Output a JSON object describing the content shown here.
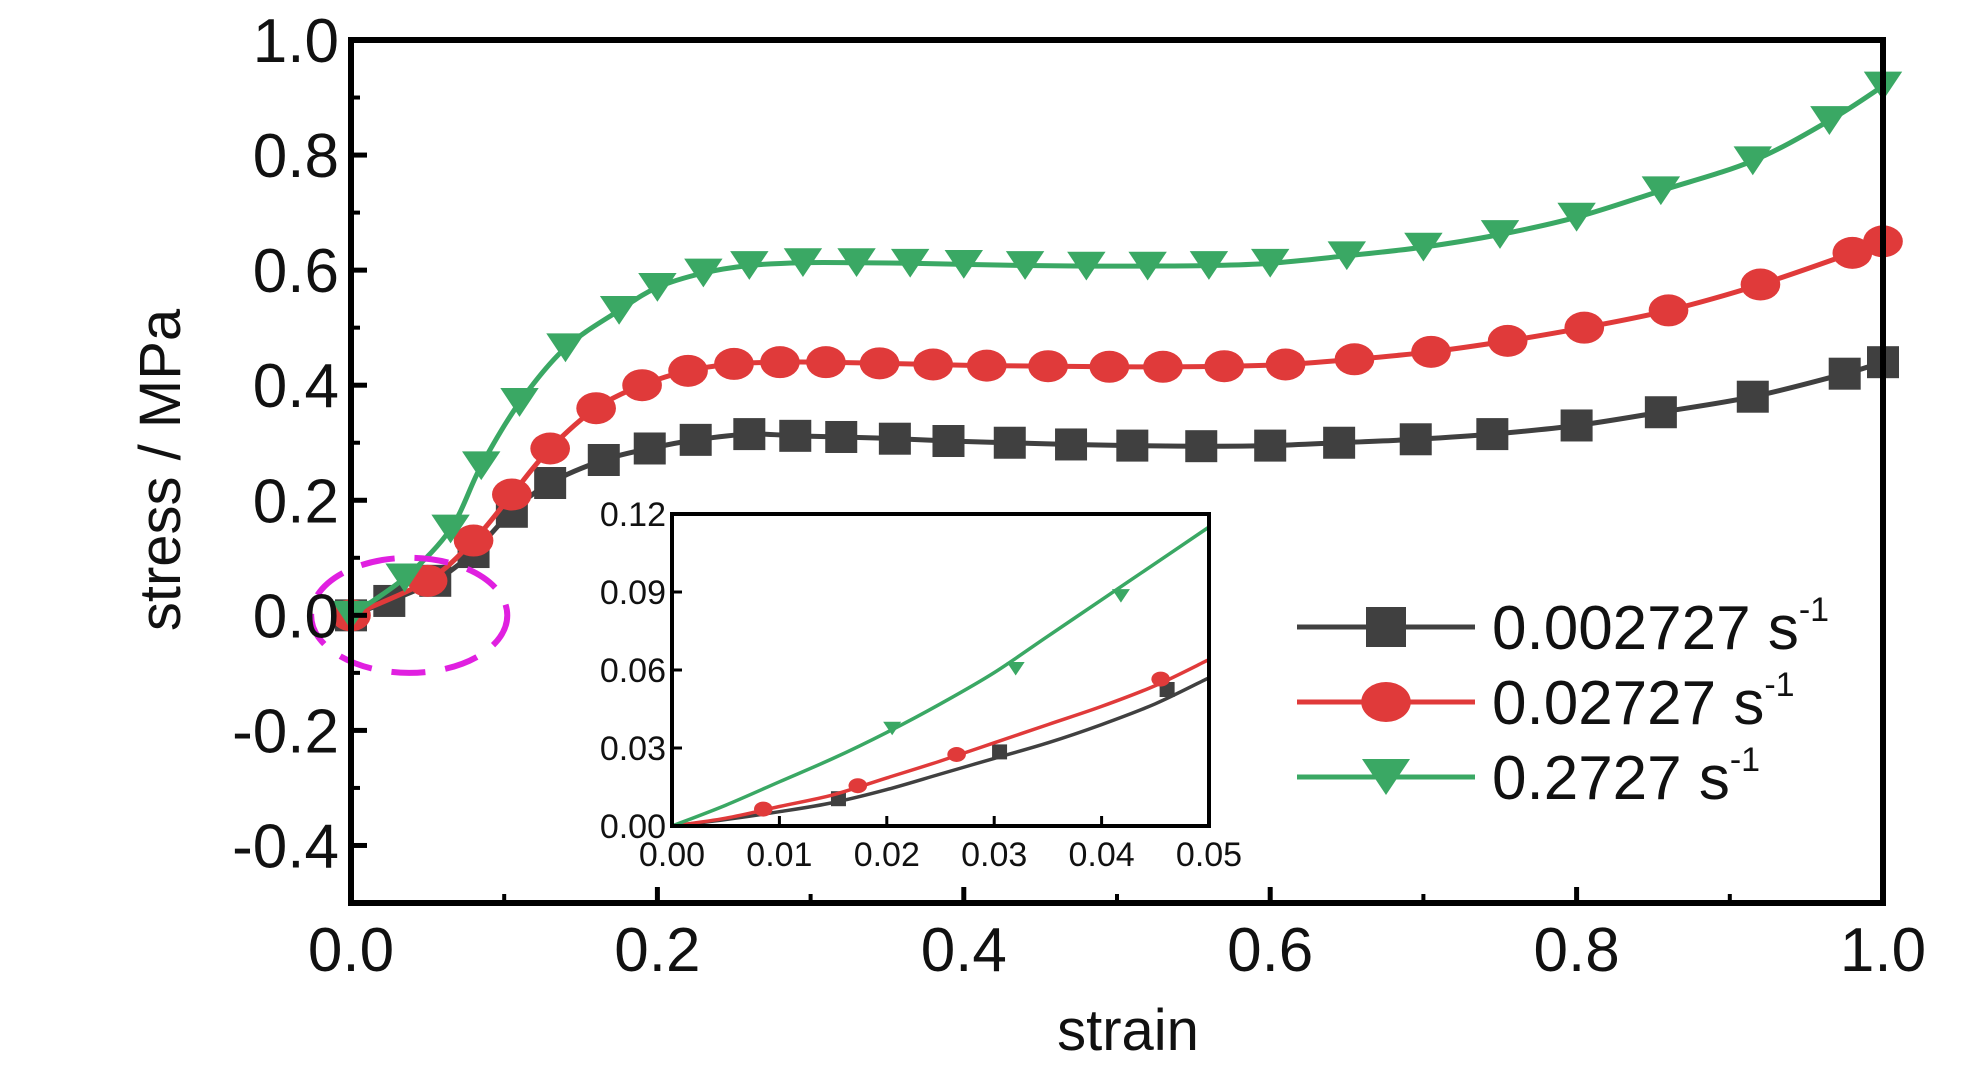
{
  "chart_data": [
    {
      "type": "line",
      "xlabel": "strain",
      "ylabel": "stress / MPa",
      "xlim": [
        0.0,
        1.0
      ],
      "ylim": [
        -0.5,
        1.0
      ],
      "x_ticks": [
        "0.0",
        "0.2",
        "0.4",
        "0.6",
        "0.8",
        "1.0"
      ],
      "y_ticks": [
        "-0.4",
        "-0.2",
        "0.0",
        "0.2",
        "0.4",
        "0.6",
        "0.8",
        "1.0"
      ],
      "legend_position": "right",
      "annotation": "dashed magenta ellipse around initial region near origin (0–0.08 strain)",
      "series": [
        {
          "name": "0.002727 s",
          "superscript": "-1",
          "color": "#404040",
          "marker": "square",
          "points": [
            [
              0.0,
              0.0
            ],
            [
              0.025,
              0.025
            ],
            [
              0.055,
              0.06
            ],
            [
              0.08,
              0.11
            ],
            [
              0.105,
              0.18
            ],
            [
              0.13,
              0.23
            ],
            [
              0.165,
              0.27
            ],
            [
              0.195,
              0.29
            ],
            [
              0.225,
              0.305
            ],
            [
              0.26,
              0.315
            ],
            [
              0.29,
              0.312
            ],
            [
              0.32,
              0.31
            ],
            [
              0.355,
              0.307
            ],
            [
              0.39,
              0.303
            ],
            [
              0.43,
              0.3
            ],
            [
              0.47,
              0.297
            ],
            [
              0.51,
              0.295
            ],
            [
              0.555,
              0.294
            ],
            [
              0.6,
              0.295
            ],
            [
              0.645,
              0.3
            ],
            [
              0.695,
              0.306
            ],
            [
              0.745,
              0.315
            ],
            [
              0.8,
              0.33
            ],
            [
              0.855,
              0.353
            ],
            [
              0.915,
              0.38
            ],
            [
              0.975,
              0.42
            ],
            [
              1.0,
              0.44
            ]
          ]
        },
        {
          "name": "0.02727 s",
          "superscript": "-1",
          "color": "#e03a3a",
          "marker": "circle",
          "points": [
            [
              0.0,
              0.0
            ],
            [
              0.05,
              0.06
            ],
            [
              0.08,
              0.13
            ],
            [
              0.105,
              0.21
            ],
            [
              0.13,
              0.29
            ],
            [
              0.16,
              0.36
            ],
            [
              0.19,
              0.4
            ],
            [
              0.22,
              0.425
            ],
            [
              0.25,
              0.437
            ],
            [
              0.28,
              0.44
            ],
            [
              0.31,
              0.44
            ],
            [
              0.345,
              0.438
            ],
            [
              0.38,
              0.436
            ],
            [
              0.415,
              0.434
            ],
            [
              0.455,
              0.433
            ],
            [
              0.495,
              0.432
            ],
            [
              0.53,
              0.432
            ],
            [
              0.57,
              0.433
            ],
            [
              0.61,
              0.436
            ],
            [
              0.655,
              0.445
            ],
            [
              0.705,
              0.458
            ],
            [
              0.755,
              0.477
            ],
            [
              0.805,
              0.5
            ],
            [
              0.86,
              0.53
            ],
            [
              0.92,
              0.575
            ],
            [
              0.98,
              0.63
            ],
            [
              1.0,
              0.65
            ]
          ]
        },
        {
          "name": "0.2727 s",
          "superscript": "-1",
          "color": "#3aa864",
          "marker": "triangle-down",
          "points": [
            [
              0.0,
              0.0
            ],
            [
              0.035,
              0.065
            ],
            [
              0.065,
              0.15
            ],
            [
              0.085,
              0.26
            ],
            [
              0.11,
              0.37
            ],
            [
              0.14,
              0.465
            ],
            [
              0.175,
              0.53
            ],
            [
              0.2,
              0.57
            ],
            [
              0.23,
              0.595
            ],
            [
              0.26,
              0.608
            ],
            [
              0.295,
              0.613
            ],
            [
              0.33,
              0.613
            ],
            [
              0.365,
              0.612
            ],
            [
              0.4,
              0.61
            ],
            [
              0.44,
              0.608
            ],
            [
              0.48,
              0.607
            ],
            [
              0.52,
              0.607
            ],
            [
              0.56,
              0.608
            ],
            [
              0.6,
              0.612
            ],
            [
              0.65,
              0.625
            ],
            [
              0.7,
              0.64
            ],
            [
              0.75,
              0.662
            ],
            [
              0.8,
              0.692
            ],
            [
              0.855,
              0.738
            ],
            [
              0.915,
              0.79
            ],
            [
              0.965,
              0.86
            ],
            [
              1.0,
              0.92
            ]
          ]
        }
      ]
    },
    {
      "type": "line",
      "role": "inset",
      "xlim": [
        0.0,
        0.05
      ],
      "ylim": [
        0.0,
        0.12
      ],
      "x_ticks": [
        "0.00",
        "0.01",
        "0.02",
        "0.03",
        "0.04",
        "0.05"
      ],
      "y_ticks": [
        "0.00",
        "0.03",
        "0.06",
        "0.09",
        "0.12"
      ],
      "series": [
        {
          "color": "#404040",
          "marker": "square",
          "points": [
            [
              0.0,
              0.0
            ],
            [
              0.005,
              0.0025
            ],
            [
              0.01,
              0.0055
            ],
            [
              0.015,
              0.009
            ],
            [
              0.02,
              0.014
            ],
            [
              0.025,
              0.02
            ],
            [
              0.03,
              0.026
            ],
            [
              0.035,
              0.032
            ],
            [
              0.04,
              0.039
            ],
            [
              0.045,
              0.047
            ],
            [
              0.05,
              0.057
            ]
          ],
          "marker_points": [
            [
              0.0155,
              0.0105
            ],
            [
              0.0305,
              0.0285
            ],
            [
              0.0461,
              0.0525
            ]
          ]
        },
        {
          "color": "#e03a3a",
          "marker": "circle",
          "points": [
            [
              0.0,
              0.0
            ],
            [
              0.005,
              0.003
            ],
            [
              0.01,
              0.0075
            ],
            [
              0.015,
              0.012
            ],
            [
              0.02,
              0.0185
            ],
            [
              0.025,
              0.025
            ],
            [
              0.03,
              0.032
            ],
            [
              0.035,
              0.039
            ],
            [
              0.04,
              0.046
            ],
            [
              0.045,
              0.054
            ],
            [
              0.05,
              0.064
            ]
          ],
          "marker_points": [
            [
              0.0085,
              0.0065
            ],
            [
              0.0173,
              0.0155
            ],
            [
              0.0265,
              0.0275
            ],
            [
              0.0455,
              0.0565
            ]
          ]
        },
        {
          "color": "#3aa864",
          "marker": "triangle-down",
          "points": [
            [
              0.0,
              0.0
            ],
            [
              0.005,
              0.008
            ],
            [
              0.01,
              0.017
            ],
            [
              0.015,
              0.026
            ],
            [
              0.02,
              0.036
            ],
            [
              0.025,
              0.047
            ],
            [
              0.03,
              0.059
            ],
            [
              0.035,
              0.073
            ],
            [
              0.04,
              0.087
            ],
            [
              0.045,
              0.101
            ],
            [
              0.05,
              0.115
            ]
          ],
          "marker_points": [
            [
              0.0205,
              0.0375
            ],
            [
              0.032,
              0.0605
            ],
            [
              0.0418,
              0.0885
            ]
          ]
        }
      ]
    }
  ]
}
